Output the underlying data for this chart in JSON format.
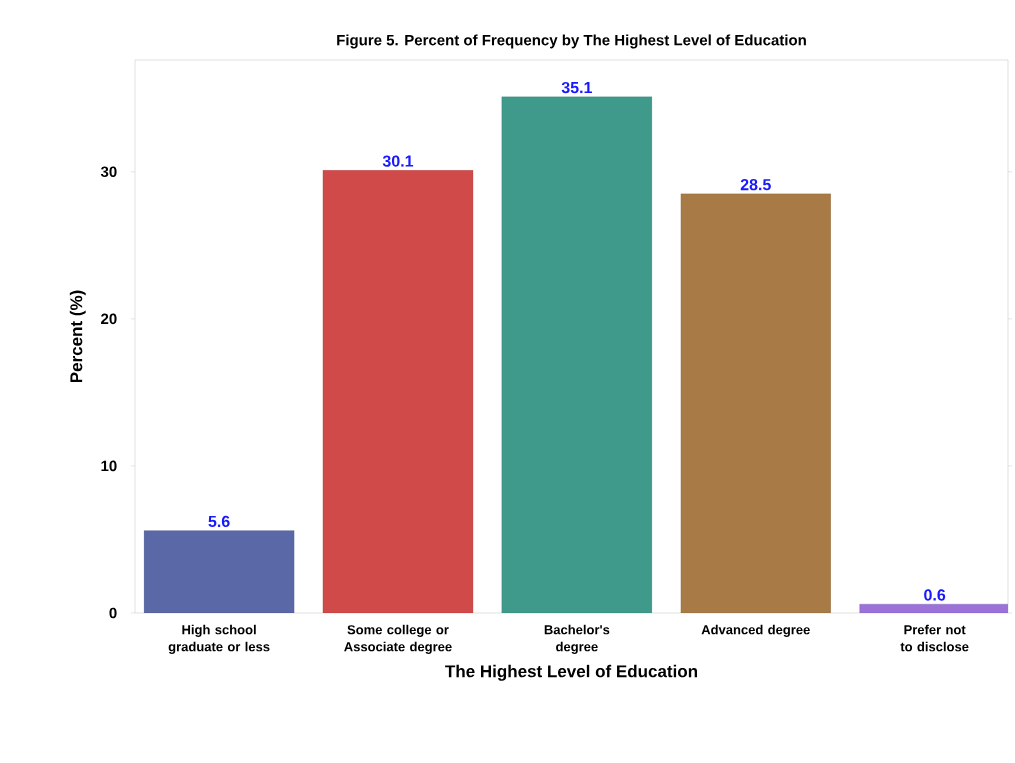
{
  "chart_data": {
    "type": "bar",
    "title": "Figure 5. Percent of Frequency by The Highest Level of Education",
    "xlabel": "The Highest Level of Education",
    "ylabel": "Percent (%)",
    "categories": [
      "High school graduate or less",
      "Some college or Associate degree",
      "Bachelor's degree",
      "Advanced degree",
      "Prefer not to disclose"
    ],
    "values": [
      5.6,
      30.1,
      35.1,
      28.5,
      0.6
    ],
    "colors": [
      "#5b68a8",
      "#d04a4a",
      "#3f9a8c",
      "#a87a45",
      "#9a72d8"
    ],
    "ylim": [
      0,
      37.6
    ],
    "yticks": [
      0,
      10,
      20,
      30
    ],
    "data_labels": true,
    "grid": false
  }
}
